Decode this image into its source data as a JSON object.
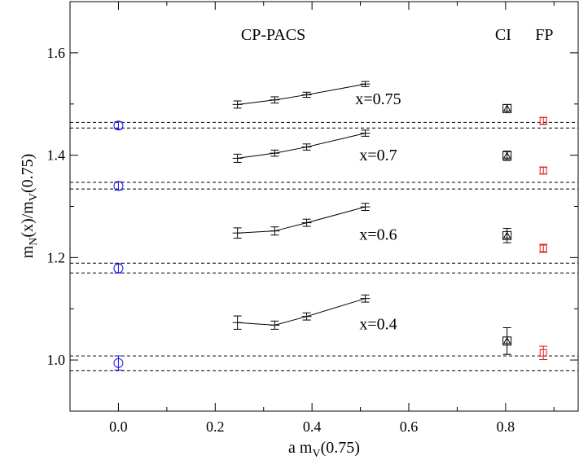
{
  "chart_data": {
    "type": "line",
    "xlabel": {
      "main": "a m",
      "sub": "V",
      "tail": "(0.75)"
    },
    "ylabel": {
      "p1": "m",
      "s1": "N",
      "p2": "(x)/m",
      "s2": "V",
      "p3": "(0.75)"
    },
    "xlim": [
      -0.1,
      0.95
    ],
    "ylim": [
      0.9,
      1.7
    ],
    "x_ticks": [
      {
        "value": 0.0,
        "label": "0.0"
      },
      {
        "value": 0.2,
        "label": "0.2"
      },
      {
        "value": 0.4,
        "label": "0.4"
      },
      {
        "value": 0.6,
        "label": "0.6"
      },
      {
        "value": 0.8,
        "label": "0.8"
      }
    ],
    "y_ticks": [
      {
        "value": 1.0,
        "label": "1.0"
      },
      {
        "value": 1.2,
        "label": "1.2"
      },
      {
        "value": 1.4,
        "label": "1.4"
      },
      {
        "value": 1.6,
        "label": "1.6"
      }
    ],
    "grid": false,
    "annotations": [
      {
        "text": "CP-PACS",
        "x": 0.32,
        "y": 1.625
      },
      {
        "text": "CI",
        "x": 0.795,
        "y": 1.625
      },
      {
        "text": "FP",
        "x": 0.88,
        "y": 1.625
      }
    ],
    "series": [
      {
        "label": "x=0.75",
        "label_pos": [
          0.537,
          1.5
        ],
        "cppacs": [
          {
            "x": 0.246,
            "y": 1.499,
            "err": 0.007
          },
          {
            "x": 0.323,
            "y": 1.508,
            "err": 0.006
          },
          {
            "x": 0.389,
            "y": 1.518,
            "err": 0.005
          },
          {
            "x": 0.51,
            "y": 1.539,
            "err": 0.005
          }
        ],
        "chiral": {
          "x": 0.0,
          "y": 1.458,
          "err": 0.007
        },
        "band": [
          1.453,
          1.464
        ],
        "ci": {
          "x": 0.803,
          "y": 1.491,
          "err": 0.008
        },
        "fp": {
          "x": 0.878,
          "y": 1.467,
          "err": 0.007
        }
      },
      {
        "label": "x=0.7",
        "label_pos": [
          0.537,
          1.39
        ],
        "cppacs": [
          {
            "x": 0.246,
            "y": 1.394,
            "err": 0.008
          },
          {
            "x": 0.323,
            "y": 1.404,
            "err": 0.006
          },
          {
            "x": 0.389,
            "y": 1.416,
            "err": 0.006
          },
          {
            "x": 0.51,
            "y": 1.443,
            "err": 0.006
          }
        ],
        "chiral": {
          "x": 0.0,
          "y": 1.34,
          "err": 0.008
        },
        "band": [
          1.334,
          1.347
        ],
        "ci": {
          "x": 0.803,
          "y": 1.399,
          "err": 0.009
        },
        "fp": {
          "x": 0.878,
          "y": 1.37,
          "err": 0.007
        }
      },
      {
        "label": "x=0.6",
        "label_pos": [
          0.537,
          1.235
        ],
        "cppacs": [
          {
            "x": 0.246,
            "y": 1.248,
            "err": 0.01
          },
          {
            "x": 0.323,
            "y": 1.252,
            "err": 0.008
          },
          {
            "x": 0.389,
            "y": 1.268,
            "err": 0.007
          },
          {
            "x": 0.51,
            "y": 1.299,
            "err": 0.007
          }
        ],
        "chiral": {
          "x": 0.0,
          "y": 1.179,
          "err": 0.009
        },
        "band": [
          1.17,
          1.189
        ],
        "ci": {
          "x": 0.803,
          "y": 1.243,
          "err": 0.014
        },
        "fp": {
          "x": 0.878,
          "y": 1.218,
          "err": 0.008
        }
      },
      {
        "label": "x=0.4",
        "label_pos": [
          0.537,
          1.06
        ],
        "cppacs": [
          {
            "x": 0.246,
            "y": 1.073,
            "err": 0.013
          },
          {
            "x": 0.323,
            "y": 1.068,
            "err": 0.008
          },
          {
            "x": 0.389,
            "y": 1.085,
            "err": 0.007
          },
          {
            "x": 0.51,
            "y": 1.12,
            "err": 0.007
          }
        ],
        "chiral": {
          "x": 0.0,
          "y": 0.994,
          "err": 0.014
        },
        "band": [
          0.979,
          1.008
        ],
        "ci": {
          "x": 0.803,
          "y": 1.037,
          "err": 0.026
        },
        "fp": {
          "x": 0.878,
          "y": 1.014,
          "err": 0.013
        }
      }
    ],
    "colors": {
      "cppacs": "#000000",
      "ci": "#000000",
      "fp": "#e02020",
      "chiral": "#1a1ae0"
    }
  }
}
